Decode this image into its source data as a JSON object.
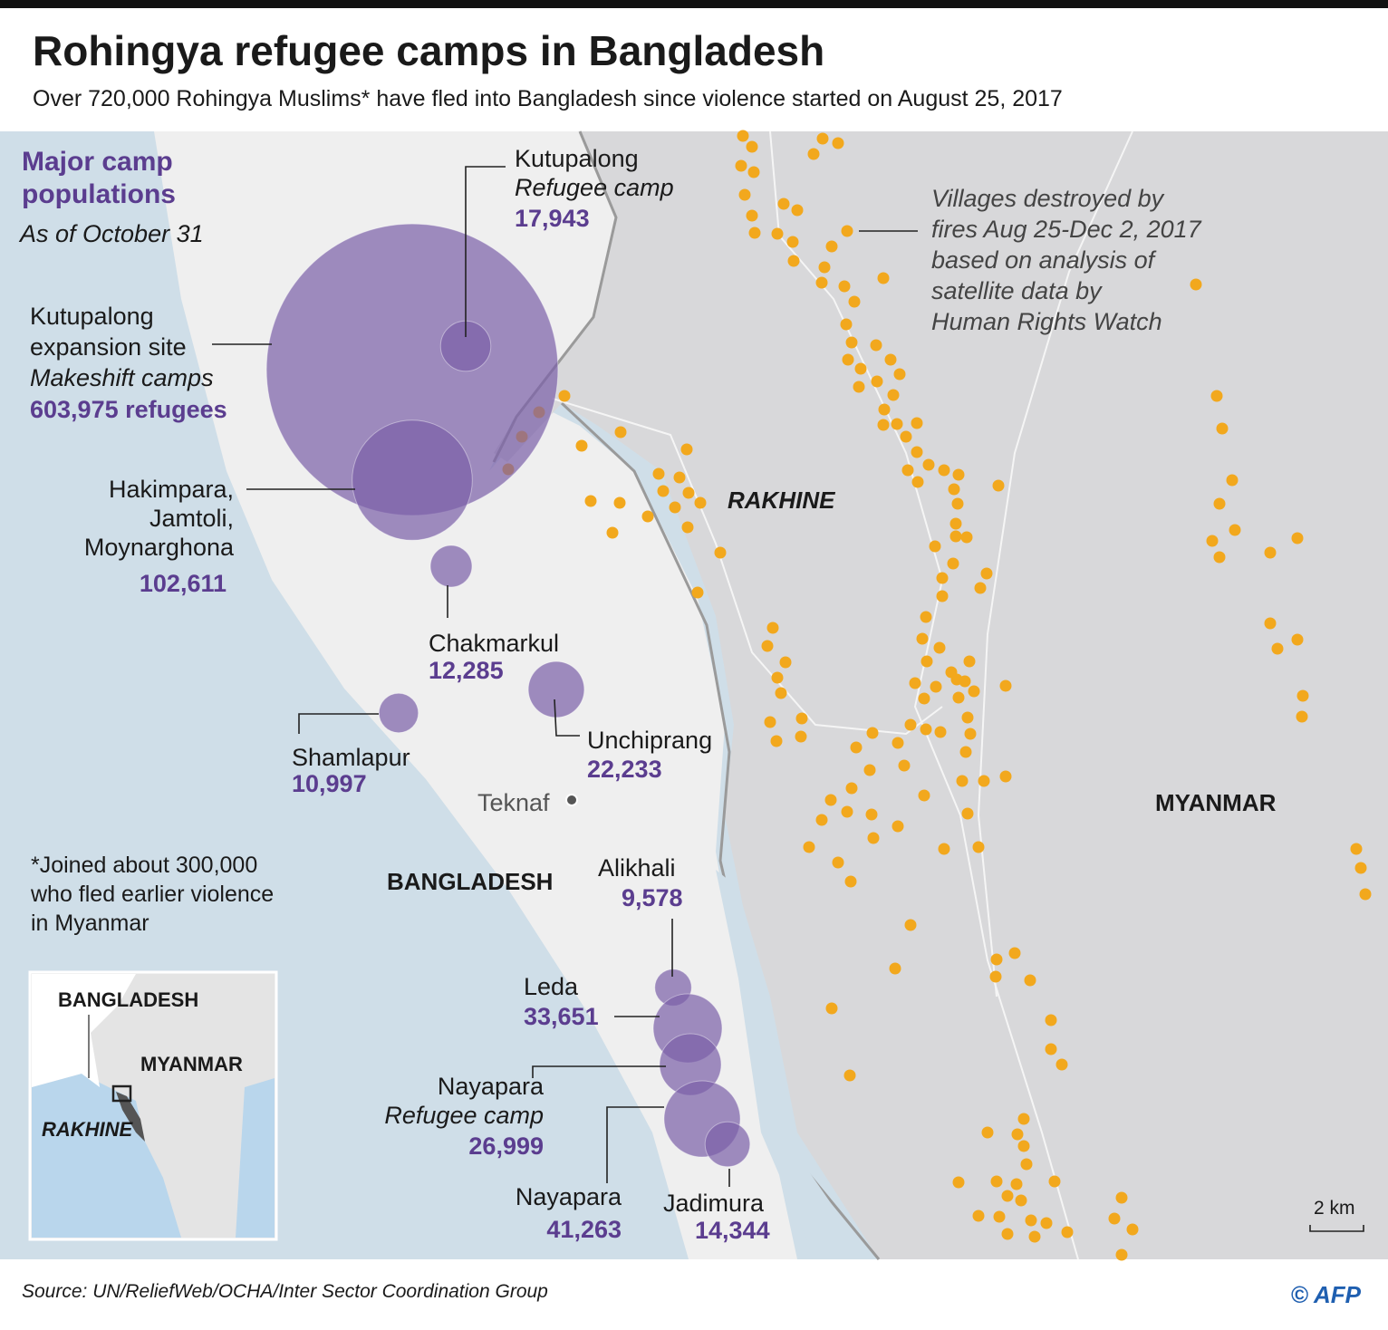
{
  "header": {
    "title": "Rohingya refugee camps in Bangladesh",
    "subtitle": "Over 720,000 Rohingya Muslims* have fled into Bangladesh since violence started on August 25, 2017"
  },
  "legend": {
    "heading": [
      "Major camp",
      "populations"
    ],
    "date": "As of October 31"
  },
  "camps": [
    {
      "name": [
        "Kutupalong"
      ],
      "type": "Refugee camp",
      "population": {
        "value": 17943,
        "label": "17,943"
      }
    },
    {
      "name": [
        "Kutupalong",
        "expansion site"
      ],
      "type": "Makeshift camps",
      "population": {
        "value": 603975,
        "label": "603,975 refugees"
      }
    },
    {
      "name": [
        "Hakimpara,",
        "Jamtoli,",
        "Moynarghona"
      ],
      "population": {
        "value": 102611,
        "label": "102,611"
      }
    },
    {
      "name": [
        "Chakmarkul"
      ],
      "population": {
        "value": 12285,
        "label": "12,285"
      }
    },
    {
      "name": [
        "Unchiprang"
      ],
      "population": {
        "value": 22233,
        "label": "22,233"
      }
    },
    {
      "name": [
        "Shamlapur"
      ],
      "population": {
        "value": 10997,
        "label": "10,997"
      }
    },
    {
      "name": [
        "Alikhali"
      ],
      "population": {
        "value": 9578,
        "label": "9,578"
      }
    },
    {
      "name": [
        "Leda"
      ],
      "population": {
        "value": 33651,
        "label": "33,651"
      }
    },
    {
      "name": [
        "Nayapara"
      ],
      "type": "Refugee camp",
      "population": {
        "value": 26999,
        "label": "26,999"
      }
    },
    {
      "name": [
        "Nayapara"
      ],
      "population": {
        "value": 41263,
        "label": "41,263"
      }
    },
    {
      "name": [
        "Jadimura"
      ],
      "population": {
        "value": 14344,
        "label": "14,344"
      }
    }
  ],
  "places": {
    "rakhine": "RAKHINE",
    "myanmar": "MYANMAR",
    "bangladesh": "BANGLADESH",
    "teknaf": "Teknaf"
  },
  "villages_note": [
    "Villages destroyed by",
    "fires Aug 25-Dec 2, 2017",
    "based on analysis of",
    "satellite data by",
    "Human Rights Watch"
  ],
  "footnote": [
    "*Joined about 300,000",
    "who fled earlier violence",
    "in Myanmar"
  ],
  "inset": {
    "labels": [
      "BANGLADESH",
      "MYANMAR",
      "RAKHINE"
    ]
  },
  "scale": "2 km",
  "source": "Source: UN/ReliefWeb/OCHA/Inter Sector Coordination Group",
  "credit": "© AFP"
}
